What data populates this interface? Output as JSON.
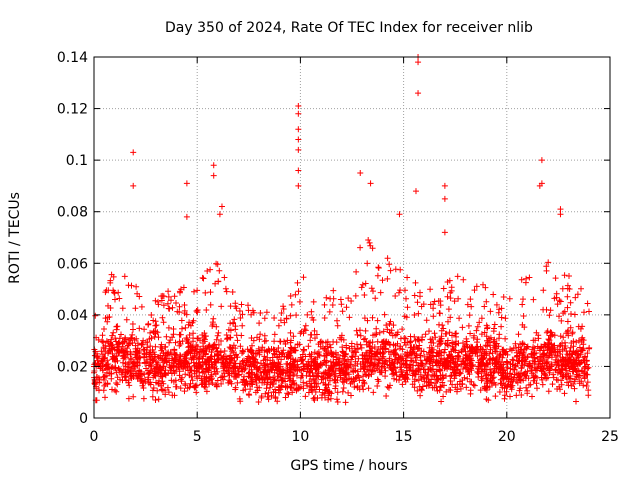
{
  "chart_data": {
    "type": "scatter",
    "title": "Day 350 of 2024, Rate Of TEC Index for receiver nlib",
    "xlabel": "GPS time / hours",
    "ylabel": "ROTI / TECUs",
    "xlim": [
      0,
      25
    ],
    "ylim": [
      0,
      0.14
    ],
    "x_ticks": [
      0,
      5,
      10,
      15,
      20,
      25
    ],
    "x_tick_labels": [
      "0",
      "5",
      "10",
      "15",
      "20",
      "25"
    ],
    "y_ticks": [
      0,
      0.02,
      0.04,
      0.06,
      0.08,
      0.1,
      0.12,
      0.14
    ],
    "y_tick_labels": [
      "0",
      "0.02",
      "0.04",
      "0.06",
      "0.08",
      "0.1",
      "0.12",
      "0.14"
    ],
    "grid": true,
    "marker": "plus",
    "marker_color": "#ff0000",
    "series": [
      {
        "name": "",
        "color": "#ff0000",
        "density_profile": {
          "x": [
            0,
            1,
            2,
            3,
            4,
            5,
            6,
            7,
            8,
            9,
            10,
            11,
            12,
            13,
            14,
            15,
            16,
            17,
            18,
            19,
            20,
            21,
            22,
            23,
            24
          ],
          "median": [
            0.018,
            0.022,
            0.021,
            0.02,
            0.021,
            0.022,
            0.022,
            0.02,
            0.018,
            0.017,
            0.019,
            0.018,
            0.019,
            0.022,
            0.024,
            0.022,
            0.021,
            0.02,
            0.022,
            0.021,
            0.019,
            0.022,
            0.023,
            0.021,
            0.02
          ],
          "upper_envelope": [
            0.045,
            0.058,
            0.05,
            0.045,
            0.05,
            0.055,
            0.06,
            0.045,
            0.04,
            0.04,
            0.06,
            0.045,
            0.05,
            0.07,
            0.065,
            0.055,
            0.05,
            0.05,
            0.06,
            0.05,
            0.045,
            0.06,
            0.06,
            0.055,
            0.045
          ]
        },
        "outliers": [
          {
            "x": 1.9,
            "y": 0.103
          },
          {
            "x": 1.9,
            "y": 0.09
          },
          {
            "x": 4.5,
            "y": 0.091
          },
          {
            "x": 4.5,
            "y": 0.078
          },
          {
            "x": 5.8,
            "y": 0.098
          },
          {
            "x": 5.8,
            "y": 0.094
          },
          {
            "x": 6.2,
            "y": 0.082
          },
          {
            "x": 6.1,
            "y": 0.079
          },
          {
            "x": 9.9,
            "y": 0.121
          },
          {
            "x": 9.9,
            "y": 0.118
          },
          {
            "x": 9.9,
            "y": 0.112
          },
          {
            "x": 9.9,
            "y": 0.108
          },
          {
            "x": 9.9,
            "y": 0.104
          },
          {
            "x": 9.9,
            "y": 0.096
          },
          {
            "x": 9.9,
            "y": 0.09
          },
          {
            "x": 12.9,
            "y": 0.095
          },
          {
            "x": 13.4,
            "y": 0.091
          },
          {
            "x": 14.8,
            "y": 0.079
          },
          {
            "x": 15.6,
            "y": 0.088
          },
          {
            "x": 15.7,
            "y": 0.14
          },
          {
            "x": 15.7,
            "y": 0.138
          },
          {
            "x": 15.7,
            "y": 0.126
          },
          {
            "x": 17.0,
            "y": 0.09
          },
          {
            "x": 17.0,
            "y": 0.085
          },
          {
            "x": 17.0,
            "y": 0.072
          },
          {
            "x": 21.7,
            "y": 0.1
          },
          {
            "x": 21.7,
            "y": 0.091
          },
          {
            "x": 21.6,
            "y": 0.09
          },
          {
            "x": 22.6,
            "y": 0.081
          },
          {
            "x": 22.6,
            "y": 0.079
          }
        ]
      }
    ]
  }
}
